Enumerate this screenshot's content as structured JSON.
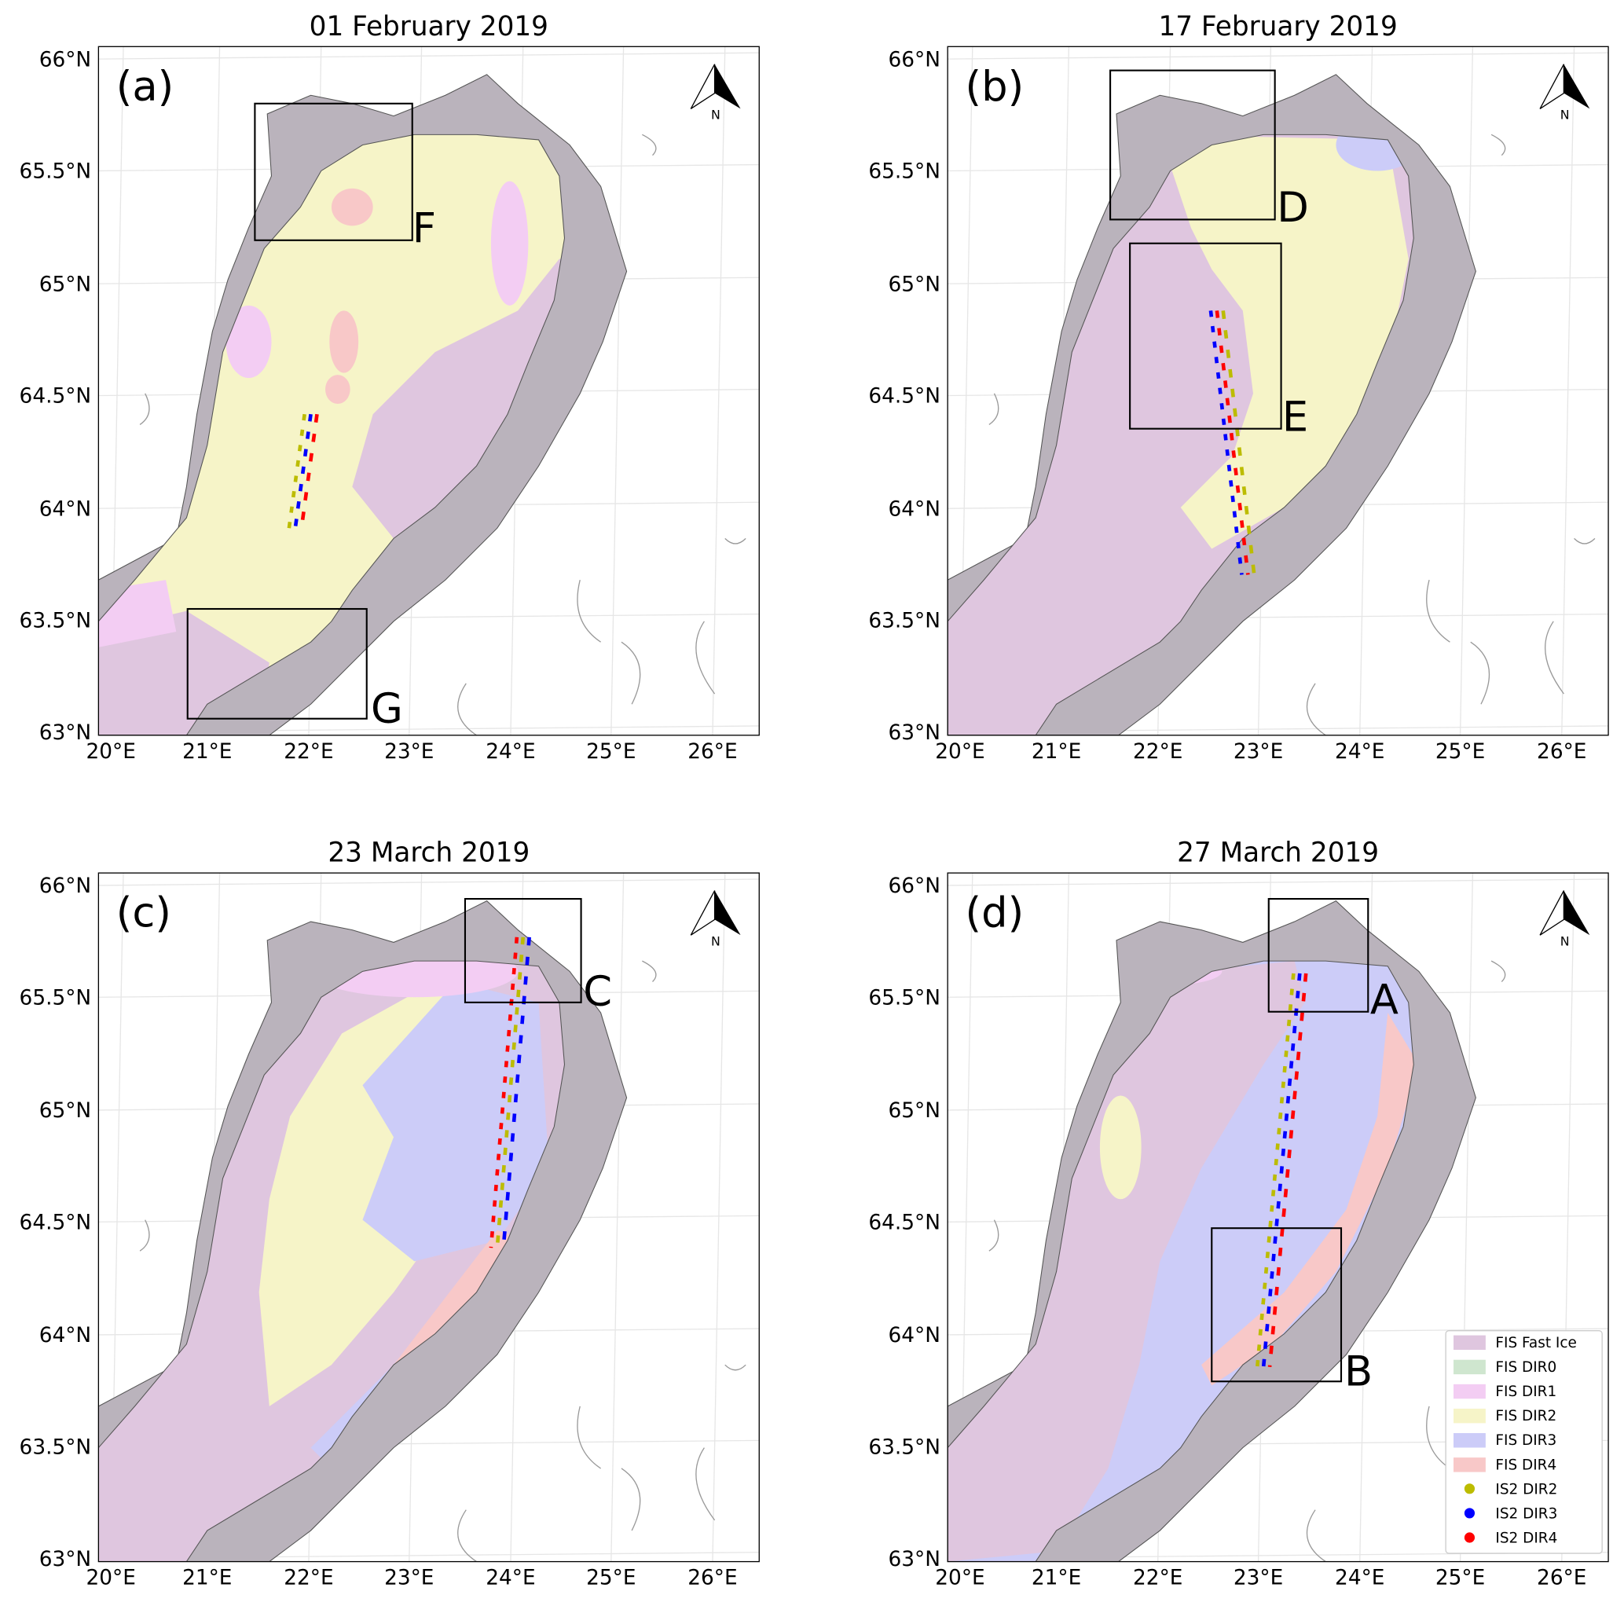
{
  "panels": [
    {
      "title": "01 February 2019",
      "label": "(a)",
      "boxes": [
        "F",
        "G"
      ]
    },
    {
      "title": "17 February 2019",
      "label": "(b)",
      "boxes": [
        "D",
        "E"
      ]
    },
    {
      "title": "23 March 2019",
      "label": "(c)",
      "boxes": [
        "C"
      ]
    },
    {
      "title": "27 March 2019",
      "label": "(d)",
      "boxes": [
        "A",
        "B"
      ]
    }
  ],
  "lat_ticks": [
    "66°N",
    "65.5°N",
    "65°N",
    "64.5°N",
    "64°N",
    "63.5°N",
    "63°N"
  ],
  "lon_ticks": [
    "20°E",
    "21°E",
    "22°E",
    "23°E",
    "24°E",
    "25°E",
    "26°E"
  ],
  "north_label": "N",
  "legend": [
    {
      "label": "FIS Fast Ice",
      "color": "#dfc6df"
    },
    {
      "label": "FIS DIR0",
      "color": "#cfe6cf"
    },
    {
      "label": "FIS DIR1",
      "color": "#f3cdf3"
    },
    {
      "label": "FIS DIR2",
      "color": "#f6f4c8"
    },
    {
      "label": "FIS DIR3",
      "color": "#ccccf8"
    },
    {
      "label": "FIS DIR4",
      "color": "#f8c8c8"
    },
    {
      "label": "IS2 DIR2",
      "color": "#bcbc00"
    },
    {
      "label": "IS2 DIR3",
      "color": "#0000ff"
    },
    {
      "label": "IS2 DIR4",
      "color": "#ff0000"
    }
  ]
}
